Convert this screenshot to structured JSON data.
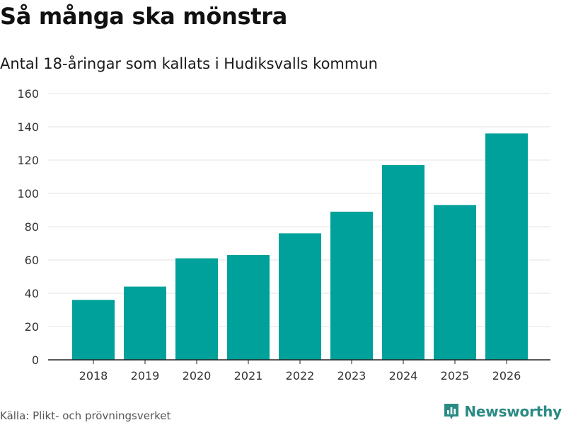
{
  "header": {
    "title": "Så många ska mönstra",
    "subtitle": "Antal 18-åringar som kallats i Hudiksvalls kommun"
  },
  "footer": {
    "source": "Källa: Plikt- och prövningsverket",
    "brand_name": "Newsworthy",
    "brand_icon": "bar-chart-logo-icon"
  },
  "colors": {
    "bar": "#00a19a",
    "grid": "#e3e3e3",
    "axis": "#222222",
    "brand": "#2b8a84"
  },
  "chart_data": {
    "type": "bar",
    "title": "Så många ska mönstra",
    "subtitle": "Antal 18-åringar som kallats i Hudiksvalls kommun",
    "xlabel": "",
    "ylabel": "",
    "categories": [
      "2018",
      "2019",
      "2020",
      "2021",
      "2022",
      "2023",
      "2024",
      "2025",
      "2026"
    ],
    "values": [
      36,
      44,
      61,
      63,
      76,
      89,
      117,
      93,
      136
    ],
    "ylim": [
      0,
      160
    ],
    "yticks": [
      0,
      20,
      40,
      60,
      80,
      100,
      120,
      140,
      160
    ],
    "grid": true,
    "legend": "none"
  }
}
